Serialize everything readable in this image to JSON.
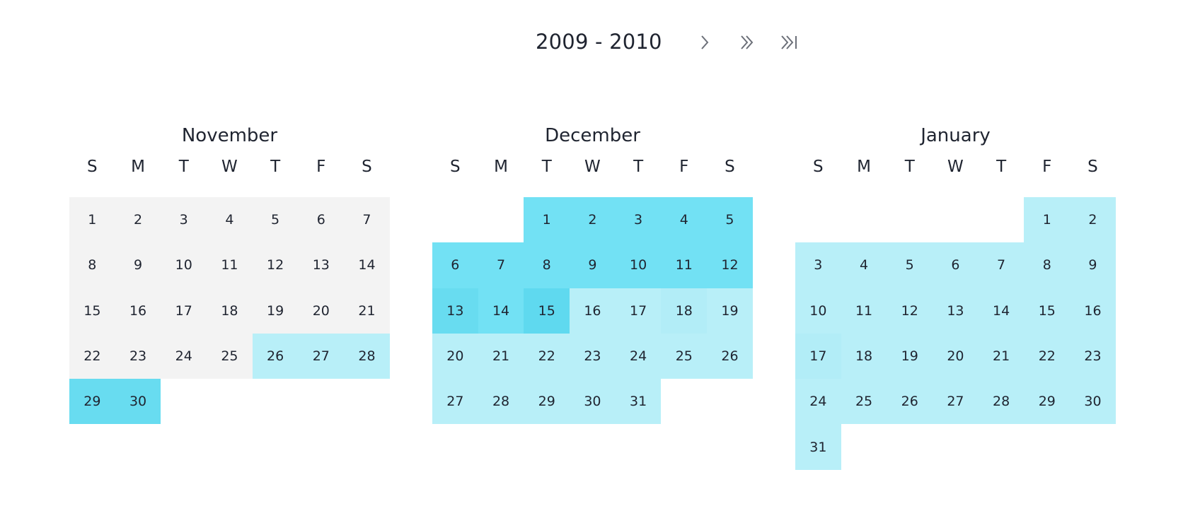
{
  "header": {
    "year_range": "2009 - 2010",
    "nav": [
      {
        "name": "next-month-button",
        "icon": "chevron-right-icon"
      },
      {
        "name": "next-page-button",
        "icon": "double-chevron-right-icon"
      },
      {
        "name": "last-page-button",
        "icon": "skip-to-end-icon"
      }
    ]
  },
  "weekdays": [
    "S",
    "M",
    "T",
    "W",
    "T",
    "F",
    "S"
  ],
  "colors": {
    "level0": "#f3f3f3",
    "level1": "#b8eff8",
    "level2": "#b2edf7",
    "level3": "#72e1f4",
    "level4": "#68dcf0",
    "level5": "#5fd9ef"
  },
  "months": [
    {
      "name": "November",
      "offset": 0,
      "days": [
        {
          "d": "1",
          "lvl": 0
        },
        {
          "d": "2",
          "lvl": 0
        },
        {
          "d": "3",
          "lvl": 0
        },
        {
          "d": "4",
          "lvl": 0
        },
        {
          "d": "5",
          "lvl": 0
        },
        {
          "d": "6",
          "lvl": 0
        },
        {
          "d": "7",
          "lvl": 0
        },
        {
          "d": "8",
          "lvl": 0
        },
        {
          "d": "9",
          "lvl": 0
        },
        {
          "d": "10",
          "lvl": 0
        },
        {
          "d": "11",
          "lvl": 0
        },
        {
          "d": "12",
          "lvl": 0
        },
        {
          "d": "13",
          "lvl": 0
        },
        {
          "d": "14",
          "lvl": 0
        },
        {
          "d": "15",
          "lvl": 0
        },
        {
          "d": "16",
          "lvl": 0
        },
        {
          "d": "17",
          "lvl": 0
        },
        {
          "d": "18",
          "lvl": 0
        },
        {
          "d": "19",
          "lvl": 0
        },
        {
          "d": "20",
          "lvl": 0
        },
        {
          "d": "21",
          "lvl": 0
        },
        {
          "d": "22",
          "lvl": 0
        },
        {
          "d": "23",
          "lvl": 0
        },
        {
          "d": "24",
          "lvl": 0
        },
        {
          "d": "25",
          "lvl": 0
        },
        {
          "d": "26",
          "lvl": 1
        },
        {
          "d": "27",
          "lvl": 1
        },
        {
          "d": "28",
          "lvl": 1
        },
        {
          "d": "29",
          "lvl": 4
        },
        {
          "d": "30",
          "lvl": 4
        }
      ]
    },
    {
      "name": "December",
      "offset": 2,
      "days": [
        {
          "d": "1",
          "lvl": 3
        },
        {
          "d": "2",
          "lvl": 3
        },
        {
          "d": "3",
          "lvl": 3
        },
        {
          "d": "4",
          "lvl": 3
        },
        {
          "d": "5",
          "lvl": 3
        },
        {
          "d": "6",
          "lvl": 3
        },
        {
          "d": "7",
          "lvl": 3
        },
        {
          "d": "8",
          "lvl": 3
        },
        {
          "d": "9",
          "lvl": 3
        },
        {
          "d": "10",
          "lvl": 3
        },
        {
          "d": "11",
          "lvl": 3
        },
        {
          "d": "12",
          "lvl": 3
        },
        {
          "d": "13",
          "lvl": 4
        },
        {
          "d": "14",
          "lvl": 3
        },
        {
          "d": "15",
          "lvl": 5
        },
        {
          "d": "16",
          "lvl": 1
        },
        {
          "d": "17",
          "lvl": 1
        },
        {
          "d": "18",
          "lvl": 2
        },
        {
          "d": "19",
          "lvl": 1
        },
        {
          "d": "20",
          "lvl": 1
        },
        {
          "d": "21",
          "lvl": 1
        },
        {
          "d": "22",
          "lvl": 1
        },
        {
          "d": "23",
          "lvl": 1
        },
        {
          "d": "24",
          "lvl": 1
        },
        {
          "d": "25",
          "lvl": 1
        },
        {
          "d": "26",
          "lvl": 1
        },
        {
          "d": "27",
          "lvl": 1
        },
        {
          "d": "28",
          "lvl": 1
        },
        {
          "d": "29",
          "lvl": 1
        },
        {
          "d": "30",
          "lvl": 1
        },
        {
          "d": "31",
          "lvl": 1
        }
      ]
    },
    {
      "name": "January",
      "offset": 5,
      "days": [
        {
          "d": "1",
          "lvl": 1
        },
        {
          "d": "2",
          "lvl": 1
        },
        {
          "d": "3",
          "lvl": 1
        },
        {
          "d": "4",
          "lvl": 1
        },
        {
          "d": "5",
          "lvl": 1
        },
        {
          "d": "6",
          "lvl": 1
        },
        {
          "d": "7",
          "lvl": 1
        },
        {
          "d": "8",
          "lvl": 1
        },
        {
          "d": "9",
          "lvl": 1
        },
        {
          "d": "10",
          "lvl": 1
        },
        {
          "d": "11",
          "lvl": 1
        },
        {
          "d": "12",
          "lvl": 1
        },
        {
          "d": "13",
          "lvl": 1
        },
        {
          "d": "14",
          "lvl": 1
        },
        {
          "d": "15",
          "lvl": 1
        },
        {
          "d": "16",
          "lvl": 1
        },
        {
          "d": "17",
          "lvl": 2
        },
        {
          "d": "18",
          "lvl": 1
        },
        {
          "d": "19",
          "lvl": 1
        },
        {
          "d": "20",
          "lvl": 1
        },
        {
          "d": "21",
          "lvl": 1
        },
        {
          "d": "22",
          "lvl": 1
        },
        {
          "d": "23",
          "lvl": 1
        },
        {
          "d": "24",
          "lvl": 1
        },
        {
          "d": "25",
          "lvl": 1
        },
        {
          "d": "26",
          "lvl": 1
        },
        {
          "d": "27",
          "lvl": 1
        },
        {
          "d": "28",
          "lvl": 1
        },
        {
          "d": "29",
          "lvl": 1
        },
        {
          "d": "30",
          "lvl": 1
        },
        {
          "d": "31",
          "lvl": 1
        }
      ]
    }
  ]
}
